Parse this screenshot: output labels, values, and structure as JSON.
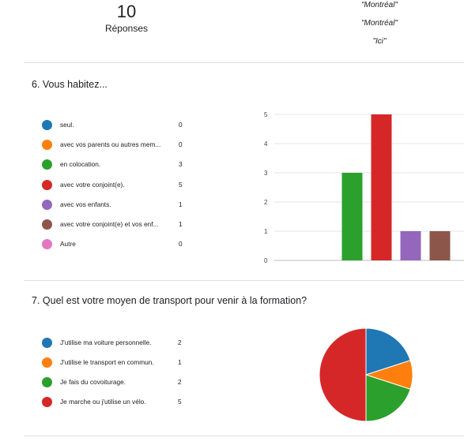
{
  "summary": {
    "count": "10",
    "count_label": "Réponses",
    "responses": [
      "\"Montréal\"",
      "\"Montréal\"",
      "\"Ici\""
    ]
  },
  "q6": {
    "title": "6. Vous habitez...",
    "options": [
      {
        "label": "seul.",
        "display": "seul.",
        "count": "0",
        "color": "#1f77b4"
      },
      {
        "label": "avec vos parents ou autres membres de votre famille.",
        "display": "avec vos parents ou autres mem...",
        "count": "0",
        "color": "#ff7f0e"
      },
      {
        "label": "en colocation.",
        "display": "en colocation.",
        "count": "3",
        "color": "#2ca02c"
      },
      {
        "label": "avec votre conjoint(e).",
        "display": "avec votre conjoint(e).",
        "count": "5",
        "color": "#d62728"
      },
      {
        "label": "avec vos enfants.",
        "display": "avec vos enfants.",
        "count": "1",
        "color": "#9467bd"
      },
      {
        "label": "avec votre conjoint(e) et vos enfants.",
        "display": "avec votre conjoint(e) et vos enf...",
        "count": "1",
        "color": "#8c564b"
      },
      {
        "label": "Autre",
        "display": "Autre",
        "count": "0",
        "color": "#e377c2"
      }
    ]
  },
  "q7": {
    "title": "7. Quel est votre moyen de transport pour venir à la formation?",
    "options": [
      {
        "label": "J'utilise ma voiture personnelle.",
        "count": "2",
        "color": "#1f77b4"
      },
      {
        "label": "J'utilise le transport en commun.",
        "count": "1",
        "color": "#ff7f0e"
      },
      {
        "label": "Je fais du covoiturage.",
        "count": "2",
        "color": "#2ca02c"
      },
      {
        "label": "Je marche ou j'utilise un vélo.",
        "count": "5",
        "color": "#d62728"
      }
    ]
  },
  "chart_data": [
    {
      "type": "bar",
      "categories": [
        "seul.",
        "avec vos parents ou autres mem...",
        "en colocation.",
        "avec votre conjoint(e).",
        "avec vos enfants.",
        "avec votre conjoint(e) et vos enf...",
        "Autre"
      ],
      "values": [
        0,
        0,
        3,
        5,
        1,
        1,
        0
      ],
      "colors": [
        "#1f77b4",
        "#ff7f0e",
        "#2ca02c",
        "#d62728",
        "#9467bd",
        "#8c564b",
        "#e377c2"
      ],
      "ylim": [
        0,
        5
      ],
      "yticks": [
        0,
        1,
        2,
        3,
        4,
        5
      ],
      "grid": true,
      "legend": "left"
    },
    {
      "type": "pie",
      "categories": [
        "J'utilise ma voiture personnelle.",
        "J'utilise le transport en commun.",
        "Je fais du covoiturage.",
        "Je marche ou j'utilise un vélo."
      ],
      "values": [
        2,
        1,
        2,
        5
      ],
      "colors": [
        "#1f77b4",
        "#ff7f0e",
        "#2ca02c",
        "#d62728"
      ],
      "legend": "left"
    }
  ]
}
